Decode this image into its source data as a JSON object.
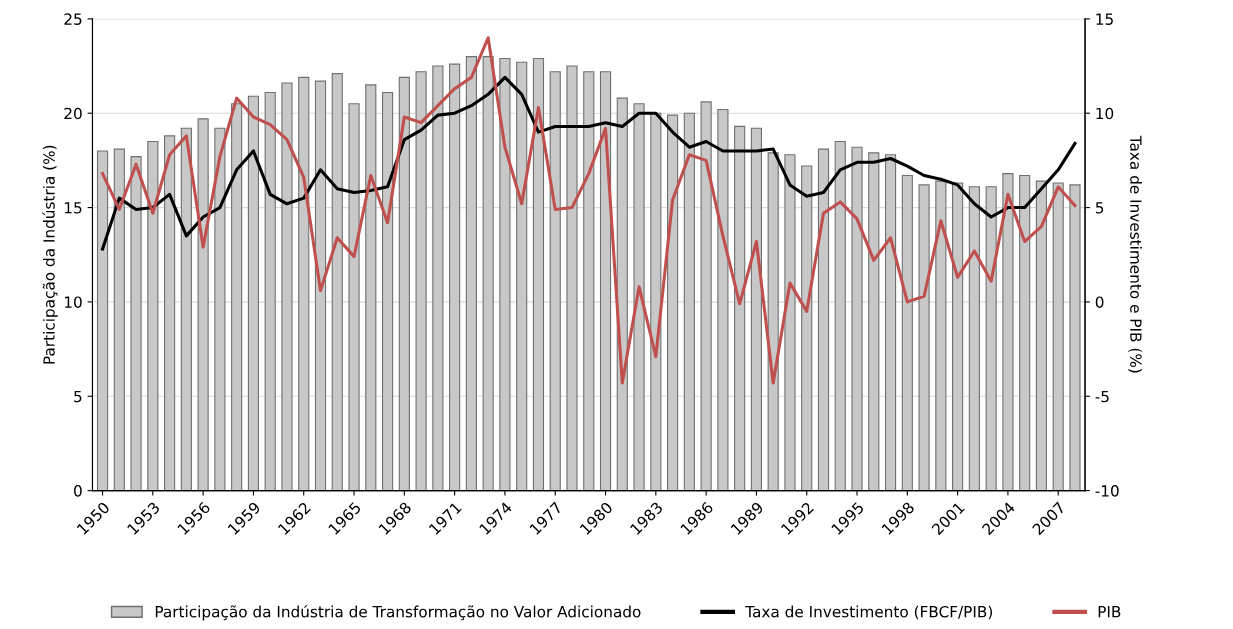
{
  "chart_data": {
    "type": "bar",
    "ylabel": "Participação da Indústria (%)",
    "y2label": "Taxa de Investimento e PIB (%)",
    "categories": [
      "1950",
      null,
      null,
      "1953",
      null,
      null,
      "1956",
      null,
      null,
      "1959",
      null,
      null,
      "1962",
      null,
      null,
      "1965",
      null,
      null,
      "1968",
      null,
      null,
      "1971",
      null,
      null,
      "1974",
      null,
      null,
      "1977",
      null,
      null,
      "1980",
      null,
      null,
      "1983",
      null,
      null,
      "1986",
      null,
      null,
      "1989",
      null,
      null,
      "1992",
      null,
      null,
      "1995",
      null,
      null,
      "1998",
      null,
      null,
      "2001",
      null,
      null,
      "2004",
      null,
      null,
      "2007",
      null
    ],
    "series": [
      {
        "name": "Participação da Indústria de Transformação no Valor Adicionado",
        "color": "#c8c8c8",
        "values": [
          18.0,
          18.1,
          17.7,
          18.5,
          18.8,
          19.2,
          19.7,
          19.2,
          20.5,
          20.9,
          21.1,
          21.6,
          21.9,
          21.7,
          22.1,
          20.5,
          21.5,
          21.1,
          21.9,
          22.2,
          22.5,
          22.6,
          23.0,
          23.0,
          22.9,
          22.7,
          22.9,
          22.2,
          22.5,
          22.2,
          22.2,
          20.8,
          20.5,
          20.0,
          19.9,
          20.0,
          20.6,
          20.2,
          19.3,
          19.2,
          17.9,
          17.8,
          17.2,
          18.1,
          18.5,
          18.2,
          17.9,
          17.8,
          16.7,
          16.2,
          16.4,
          16.3,
          16.1,
          16.1,
          16.8,
          16.7,
          16.4,
          16.3,
          16.2
        ]
      },
      {
        "name": "Taxa de Investimento (FBCF/PIB)",
        "type": "line",
        "axis": "y2",
        "color": "#000000",
        "values": [
          2.8,
          5.5,
          4.9,
          5.0,
          5.7,
          3.5,
          4.5,
          5.0,
          7.0,
          8.0,
          5.7,
          5.2,
          5.5,
          7.0,
          6.0,
          5.8,
          5.9,
          6.1,
          8.6,
          9.1,
          9.9,
          10.0,
          10.4,
          11.0,
          11.9,
          11.0,
          9.0,
          9.3,
          9.3,
          9.3,
          9.5,
          9.3,
          10.0,
          10.0,
          9.0,
          8.2,
          8.5,
          8.0,
          8.0,
          8.0,
          8.1,
          6.2,
          5.6,
          5.8,
          7.0,
          7.4,
          7.4,
          7.6,
          7.2,
          6.7,
          6.5,
          6.2,
          5.2,
          4.5,
          5.0,
          5.0,
          6.0,
          7.0,
          8.4
        ]
      },
      {
        "name": "PIB",
        "type": "line",
        "axis": "y2",
        "color": "#c0504d",
        "values": [
          6.8,
          4.9,
          7.3,
          4.7,
          7.8,
          8.8,
          2.9,
          7.7,
          10.8,
          9.8,
          9.4,
          8.6,
          6.6,
          0.6,
          3.4,
          2.4,
          6.7,
          4.2,
          9.8,
          9.5,
          10.4,
          11.3,
          11.9,
          14.0,
          8.2,
          5.2,
          10.3,
          4.9,
          5.0,
          6.8,
          9.2,
          -4.3,
          0.8,
          -2.9,
          5.4,
          7.8,
          7.5,
          3.5,
          -0.1,
          3.2,
          -4.3,
          1.0,
          -0.5,
          4.7,
          5.3,
          4.4,
          2.2,
          3.4,
          0.0,
          0.3,
          4.3,
          1.3,
          2.7,
          1.1,
          5.7,
          3.2,
          4.0,
          6.1,
          5.1
        ]
      }
    ],
    "ylim": [
      0,
      25
    ],
    "yticks": [
      0,
      5,
      10,
      15,
      20,
      25
    ],
    "y2lim": [
      -10,
      15
    ],
    "y2ticks": [
      -10,
      -5,
      0,
      5,
      10,
      15
    ],
    "grid": "y",
    "legend": "bottom"
  }
}
